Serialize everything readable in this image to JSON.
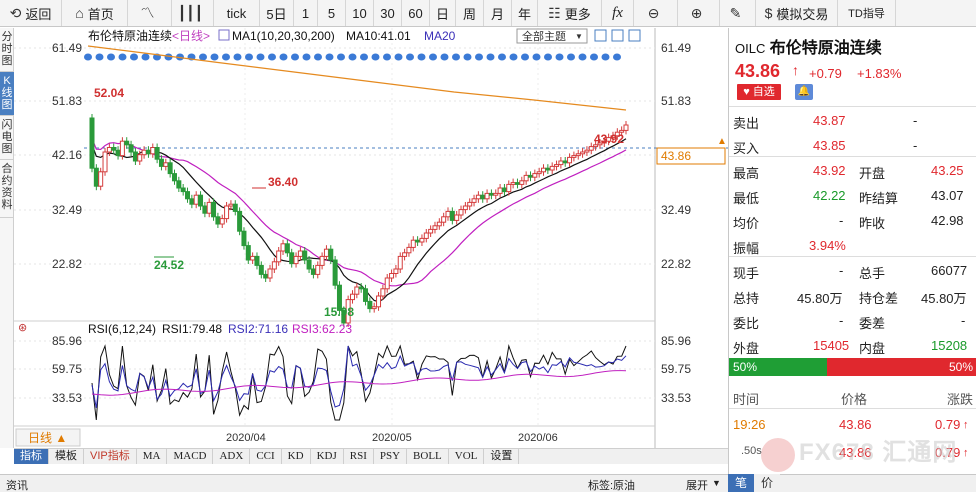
{
  "toolbar": {
    "back": "返回",
    "home": "首页",
    "tick": "tick",
    "periods": [
      "5日",
      "1",
      "5",
      "10",
      "30",
      "60",
      "日",
      "周",
      "月",
      "年"
    ],
    "more": "更多",
    "fx": "fx",
    "mock_trade": "模拟交易",
    "td_indicator": "TD指导"
  },
  "vtabs": [
    "分时图",
    "K线图",
    "闪电图",
    "合约资料"
  ],
  "chart": {
    "name": "布伦特原油连续",
    "period": "<日线>",
    "ma_label": "MA1(10,20,30,200)",
    "ma10": "MA10:41.01",
    "ma20": "MA20",
    "theme_btn": "全部主题",
    "y_ticks": [
      "61.49",
      "51.83",
      "42.16",
      "32.49",
      "22.82"
    ],
    "price_tag": "43.86",
    "annotations": {
      "high_left": "52.04",
      "peak": "36.40",
      "low1": "24.52",
      "low2": "15.98",
      "recent_high": "43.92"
    },
    "rsi_label": "RSI(6,12,24)",
    "rsi1": "RSI1:79.48",
    "rsi2": "RSI2:71.16",
    "rsi3": "RSI3:62.23",
    "rsi_ticks": [
      "85.96",
      "59.75",
      "33.53"
    ],
    "x_labels": [
      "2020/04",
      "2020/05",
      "2020/06"
    ],
    "period_btn": "日线 ▲"
  },
  "indicators": [
    "指标",
    "模板",
    "VIP指标",
    "MA",
    "MACD",
    "ADX",
    "CCI",
    "KD",
    "KDJ",
    "RSI",
    "PSY",
    "BOLL",
    "VOL",
    "设置"
  ],
  "status": {
    "left": "资讯",
    "tag": "标签:原油",
    "expand": "展开"
  },
  "panel": {
    "code": "OILC",
    "name": "布伦特原油连续",
    "price": "43.86",
    "change": "+0.79",
    "pct": "+1.83%",
    "fav": "自选",
    "rows": [
      {
        "l1": "卖出",
        "v1": "43.87",
        "l2": "",
        "v2": "-"
      },
      {
        "l1": "买入",
        "v1": "43.85",
        "l2": "",
        "v2": "-"
      },
      {
        "l1": "最高",
        "v1": "43.92",
        "l2": "开盘",
        "v2": "43.25"
      },
      {
        "l1": "最低",
        "v1": "42.22",
        "l2": "昨结算",
        "v2": "43.07"
      },
      {
        "l1": "均价",
        "v1": "-",
        "l2": "昨收",
        "v2": "42.98"
      },
      {
        "l1": "振幅",
        "v1": "3.94%",
        "l2": "",
        "v2": ""
      },
      {
        "l1": "现手",
        "v1": "-",
        "l2": "总手",
        "v2": "66077"
      },
      {
        "l1": "总持",
        "v1": "45.80万",
        "l2": "持仓差",
        "v2": "45.80万"
      },
      {
        "l1": "委比",
        "v1": "-",
        "l2": "委差",
        "v2": "-"
      },
      {
        "l1": "外盘",
        "v1": "15405",
        "l2": "内盘",
        "v2": "15208"
      }
    ],
    "buy_pct": "50%",
    "sell_pct": "50%",
    "trade_headers": [
      "时间",
      "价格",
      "涨跌"
    ],
    "trades": [
      {
        "time": "19:26",
        "price": "43.86",
        "chg": "0.79"
      },
      {
        "time": ".50s",
        "price": "43.86",
        "chg": "0.79"
      }
    ],
    "bottom_tabs": [
      "笔",
      "价"
    ],
    "watermark": "FX678 汇通网"
  }
}
